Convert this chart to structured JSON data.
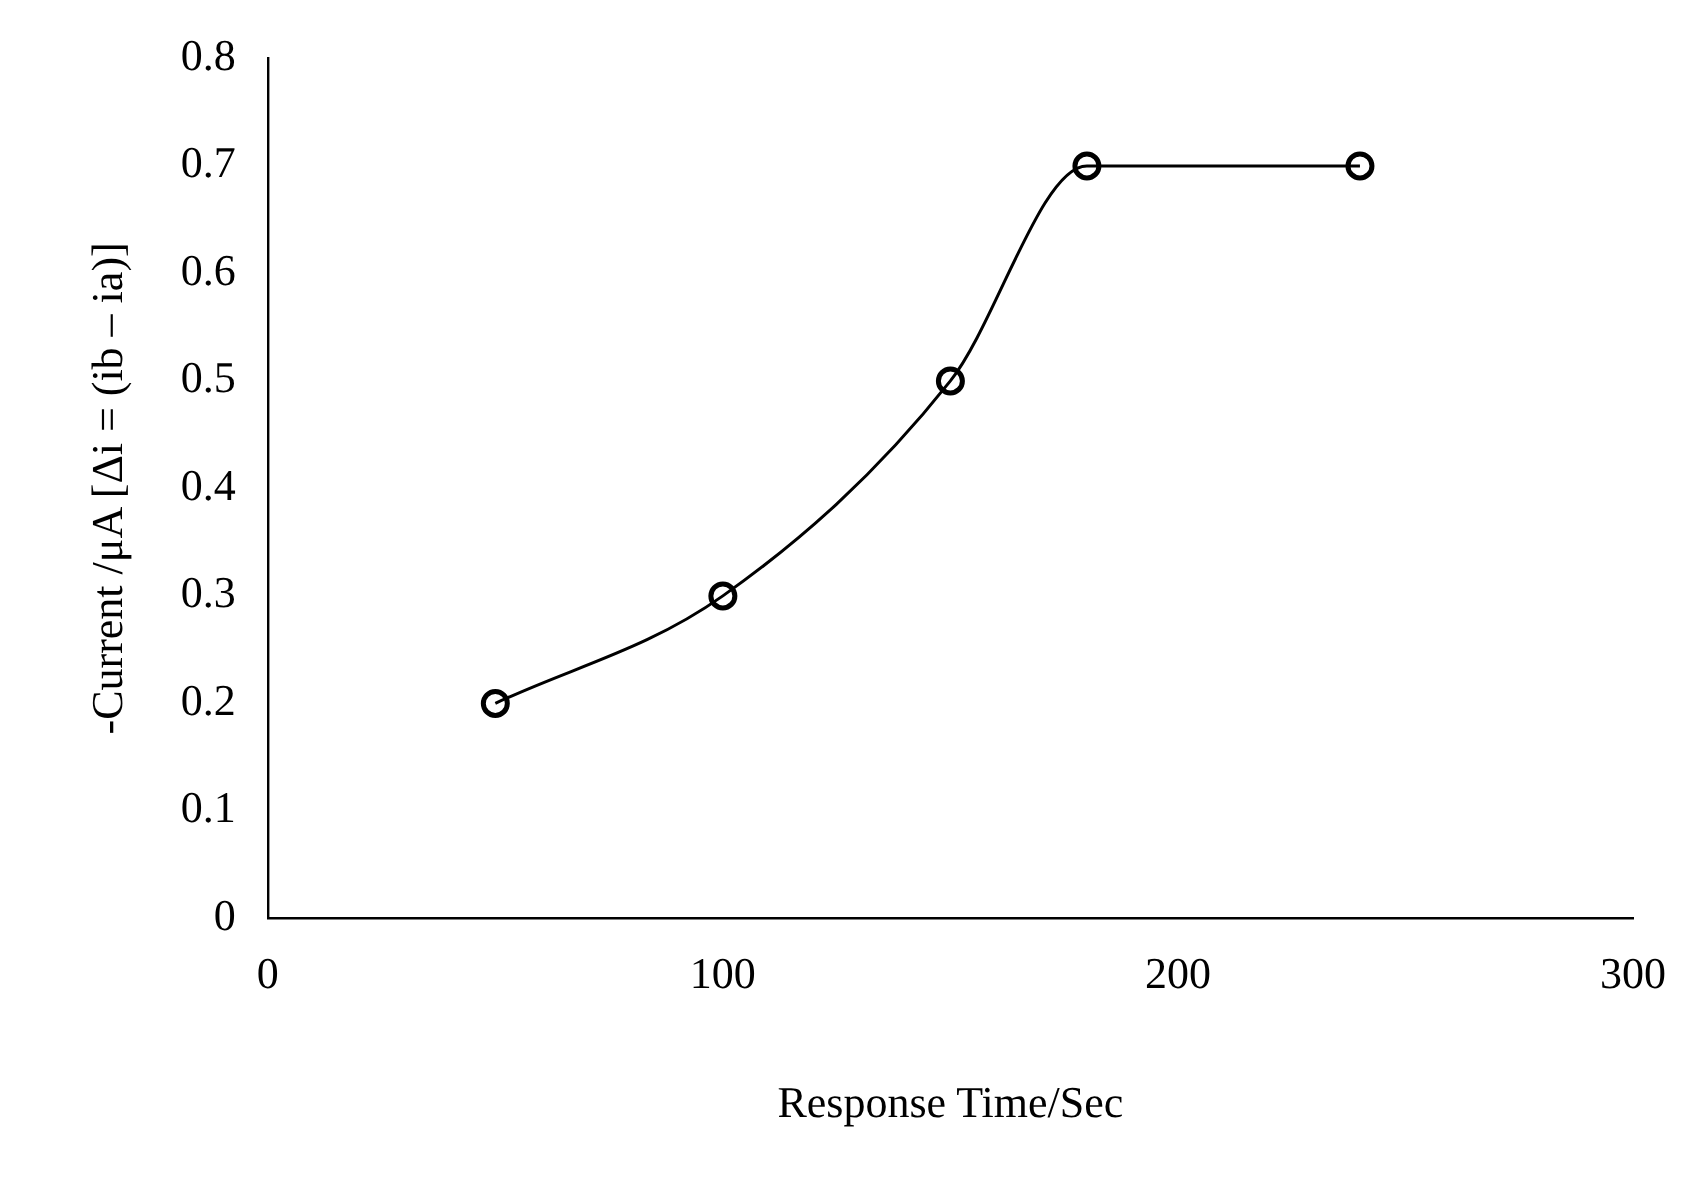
{
  "chart_data": {
    "type": "line",
    "xlabel": "Response Time/Sec",
    "ylabel": "-Current /μA [Δi = (ib – ia)]",
    "x": [
      50,
      100,
      150,
      180,
      240
    ],
    "series": [
      {
        "color": "#000000",
        "values": [
          0.2,
          0.3,
          0.5,
          0.7,
          0.7
        ]
      }
    ],
    "xlim": [
      0,
      300
    ],
    "xticks": [
      0,
      100,
      200,
      300
    ],
    "ylim": [
      0,
      0.8
    ],
    "yticks": [
      0,
      0.1,
      0.2,
      0.3,
      0.4,
      0.5,
      0.6,
      0.7,
      0.8
    ],
    "grid": false,
    "legend": false,
    "marker": "circle",
    "line_style": "solid"
  }
}
